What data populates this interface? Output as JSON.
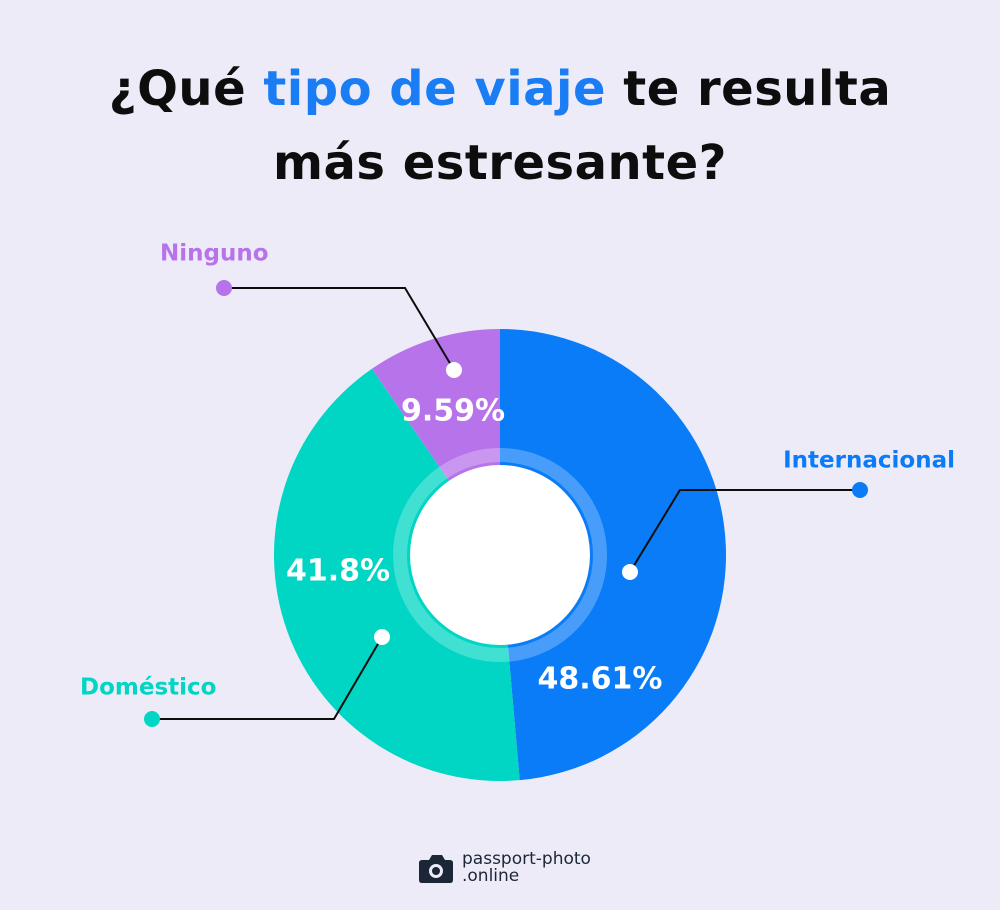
{
  "title": {
    "part1": "¿Qué ",
    "highlight": "tipo de viaje",
    "part2": " te resulta",
    "line2": "más estresante?"
  },
  "colors": {
    "background": "#eeebf8",
    "accent": "#1a7df3",
    "internacional": "#0a7cf7",
    "domestico": "#00d6c3",
    "ninguno": "#b774ea"
  },
  "chart_data": {
    "type": "pie",
    "variant": "donut",
    "start_angle": "12 o'clock",
    "direction": "clockwise",
    "categories": [
      "Internacional",
      "Doméstico",
      "Ninguno"
    ],
    "values": [
      48.61,
      41.8,
      9.59
    ],
    "value_labels": [
      "48.61%",
      "41.8%",
      "9.59%"
    ],
    "unit": "%"
  },
  "brand": {
    "line1": "passport-photo",
    "line2": ".online",
    "icon": "camera-icon"
  }
}
